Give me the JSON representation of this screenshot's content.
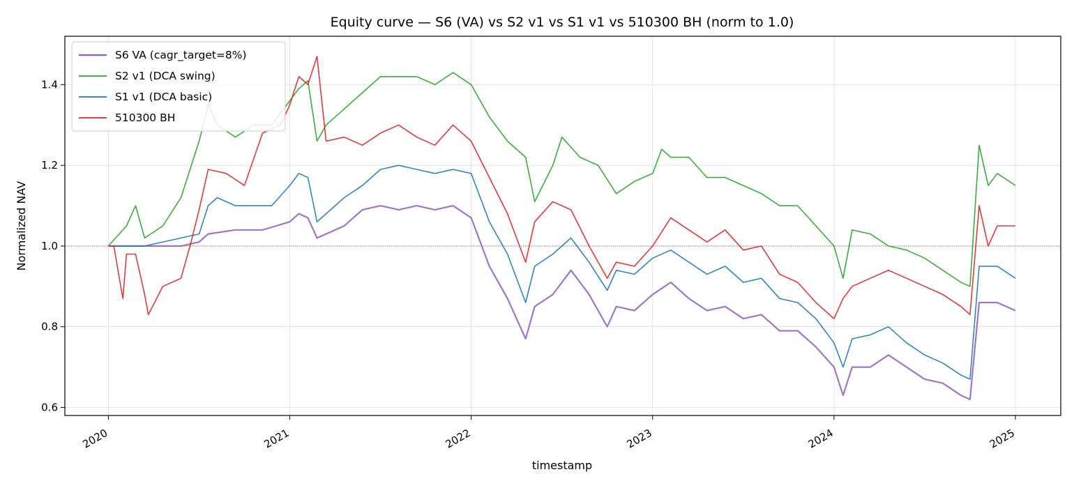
{
  "chart_data": {
    "type": "line",
    "title": "Equity curve — S6 (VA) vs S2 v1 vs S1 v1 vs 510300 BH (norm to 1.0)",
    "xlabel": "timestamp",
    "ylabel": "Normalized NAV",
    "x_range": [
      2019.76,
      2025.25
    ],
    "ylim": [
      0.58,
      1.52
    ],
    "x_ticks": [
      2020,
      2021,
      2022,
      2023,
      2024,
      2025
    ],
    "x_tick_labels": [
      "2020",
      "2021",
      "2022",
      "2023",
      "2024",
      "2025"
    ],
    "y_ticks": [
      0.6,
      0.8,
      1.0,
      1.2,
      1.4
    ],
    "y_tick_labels": [
      "0.6",
      "0.8",
      "1.0",
      "1.2",
      "1.4"
    ],
    "grid": true,
    "reference_line": 1.0,
    "legend_position": "upper-left",
    "series": [
      {
        "name": "S6 VA (cagr_target=8%)",
        "color": "#9467bd",
        "x": [
          2020.0,
          2020.1,
          2020.2,
          2020.3,
          2020.4,
          2020.5,
          2020.55,
          2020.7,
          2020.85,
          2021.0,
          2021.05,
          2021.1,
          2021.15,
          2021.2,
          2021.3,
          2021.4,
          2021.5,
          2021.6,
          2021.7,
          2021.8,
          2021.9,
          2022.0,
          2022.1,
          2022.2,
          2022.3,
          2022.35,
          2022.45,
          2022.55,
          2022.65,
          2022.75,
          2022.8,
          2022.9,
          2023.0,
          2023.1,
          2023.2,
          2023.3,
          2023.4,
          2023.5,
          2023.6,
          2023.7,
          2023.8,
          2023.9,
          2024.0,
          2024.05,
          2024.1,
          2024.2,
          2024.3,
          2024.4,
          2024.5,
          2024.6,
          2024.7,
          2024.75,
          2024.8,
          2024.9,
          2025.0
        ],
        "y": [
          1.0,
          1.0,
          1.0,
          1.0,
          1.0,
          1.01,
          1.03,
          1.04,
          1.04,
          1.06,
          1.08,
          1.07,
          1.02,
          1.03,
          1.05,
          1.09,
          1.1,
          1.09,
          1.1,
          1.09,
          1.1,
          1.07,
          0.95,
          0.87,
          0.77,
          0.85,
          0.88,
          0.94,
          0.88,
          0.8,
          0.85,
          0.84,
          0.88,
          0.91,
          0.87,
          0.84,
          0.85,
          0.82,
          0.83,
          0.79,
          0.79,
          0.75,
          0.7,
          0.63,
          0.7,
          0.7,
          0.73,
          0.7,
          0.67,
          0.66,
          0.63,
          0.62,
          0.86,
          0.86,
          0.84
        ]
      },
      {
        "name": "S2 v1 (DCA swing)",
        "color": "#2ca02c",
        "x": [
          2020.0,
          2020.1,
          2020.15,
          2020.2,
          2020.3,
          2020.4,
          2020.5,
          2020.55,
          2020.6,
          2020.7,
          2020.8,
          2020.9,
          2021.0,
          2021.05,
          2021.1,
          2021.15,
          2021.2,
          2021.3,
          2021.4,
          2021.5,
          2021.6,
          2021.7,
          2021.8,
          2021.9,
          2022.0,
          2022.1,
          2022.2,
          2022.3,
          2022.35,
          2022.45,
          2022.5,
          2022.6,
          2022.7,
          2022.8,
          2022.9,
          2023.0,
          2023.05,
          2023.1,
          2023.2,
          2023.3,
          2023.4,
          2023.5,
          2023.6,
          2023.7,
          2023.8,
          2023.9,
          2024.0,
          2024.05,
          2024.1,
          2024.2,
          2024.3,
          2024.4,
          2024.5,
          2024.6,
          2024.7,
          2024.75,
          2024.8,
          2024.85,
          2024.9,
          2025.0
        ],
        "y": [
          1.0,
          1.05,
          1.1,
          1.02,
          1.05,
          1.12,
          1.26,
          1.35,
          1.3,
          1.27,
          1.3,
          1.3,
          1.36,
          1.39,
          1.41,
          1.26,
          1.3,
          1.34,
          1.38,
          1.42,
          1.42,
          1.42,
          1.4,
          1.43,
          1.4,
          1.32,
          1.26,
          1.22,
          1.11,
          1.2,
          1.27,
          1.22,
          1.2,
          1.13,
          1.16,
          1.18,
          1.24,
          1.22,
          1.22,
          1.17,
          1.17,
          1.15,
          1.13,
          1.1,
          1.1,
          1.05,
          1.0,
          0.92,
          1.04,
          1.03,
          1.0,
          0.99,
          0.97,
          0.94,
          0.91,
          0.9,
          1.25,
          1.15,
          1.18,
          1.15
        ]
      },
      {
        "name": "S1 v1 (DCA basic)",
        "color": "#1f77b4",
        "x": [
          2020.0,
          2020.1,
          2020.2,
          2020.3,
          2020.4,
          2020.5,
          2020.55,
          2020.6,
          2020.7,
          2020.8,
          2020.9,
          2021.0,
          2021.05,
          2021.1,
          2021.15,
          2021.2,
          2021.3,
          2021.4,
          2021.5,
          2021.6,
          2021.7,
          2021.8,
          2021.9,
          2022.0,
          2022.1,
          2022.2,
          2022.3,
          2022.35,
          2022.45,
          2022.55,
          2022.65,
          2022.75,
          2022.8,
          2022.9,
          2023.0,
          2023.1,
          2023.2,
          2023.3,
          2023.4,
          2023.5,
          2023.6,
          2023.7,
          2023.8,
          2023.9,
          2024.0,
          2024.05,
          2024.1,
          2024.2,
          2024.3,
          2024.4,
          2024.5,
          2024.6,
          2024.7,
          2024.75,
          2024.8,
          2024.9,
          2025.0
        ],
        "y": [
          1.0,
          1.0,
          1.0,
          1.01,
          1.02,
          1.03,
          1.1,
          1.12,
          1.1,
          1.1,
          1.1,
          1.15,
          1.18,
          1.17,
          1.06,
          1.08,
          1.12,
          1.15,
          1.19,
          1.2,
          1.19,
          1.18,
          1.19,
          1.18,
          1.06,
          0.98,
          0.86,
          0.95,
          0.98,
          1.02,
          0.96,
          0.89,
          0.94,
          0.93,
          0.97,
          0.99,
          0.96,
          0.93,
          0.95,
          0.91,
          0.92,
          0.87,
          0.86,
          0.82,
          0.76,
          0.7,
          0.77,
          0.78,
          0.8,
          0.76,
          0.73,
          0.71,
          0.68,
          0.67,
          0.95,
          0.95,
          0.92
        ]
      },
      {
        "name": "510300 BH",
        "color": "#d62728",
        "x": [
          2020.0,
          2020.03,
          2020.08,
          2020.1,
          2020.15,
          2020.2,
          2020.22,
          2020.3,
          2020.4,
          2020.45,
          2020.5,
          2020.55,
          2020.65,
          2020.75,
          2020.85,
          2020.95,
          2021.0,
          2021.05,
          2021.1,
          2021.15,
          2021.2,
          2021.3,
          2021.4,
          2021.5,
          2021.6,
          2021.7,
          2021.8,
          2021.9,
          2022.0,
          2022.1,
          2022.2,
          2022.3,
          2022.35,
          2022.45,
          2022.55,
          2022.65,
          2022.75,
          2022.8,
          2022.9,
          2023.0,
          2023.1,
          2023.2,
          2023.3,
          2023.4,
          2023.5,
          2023.6,
          2023.7,
          2023.8,
          2023.9,
          2024.0,
          2024.05,
          2024.1,
          2024.2,
          2024.3,
          2024.4,
          2024.5,
          2024.6,
          2024.7,
          2024.75,
          2024.8,
          2024.85,
          2024.9,
          2025.0
        ],
        "y": [
          1.0,
          1.0,
          0.87,
          0.98,
          0.98,
          0.88,
          0.83,
          0.9,
          0.92,
          1.0,
          1.09,
          1.19,
          1.18,
          1.15,
          1.28,
          1.3,
          1.35,
          1.42,
          1.4,
          1.47,
          1.26,
          1.27,
          1.25,
          1.28,
          1.3,
          1.27,
          1.25,
          1.3,
          1.26,
          1.17,
          1.08,
          0.96,
          1.06,
          1.11,
          1.09,
          1.0,
          0.92,
          0.96,
          0.95,
          1.0,
          1.07,
          1.04,
          1.01,
          1.04,
          0.99,
          1.0,
          0.93,
          0.91,
          0.86,
          0.82,
          0.87,
          0.9,
          0.92,
          0.94,
          0.92,
          0.9,
          0.88,
          0.85,
          0.83,
          1.1,
          1.0,
          1.05,
          1.05
        ]
      }
    ]
  }
}
